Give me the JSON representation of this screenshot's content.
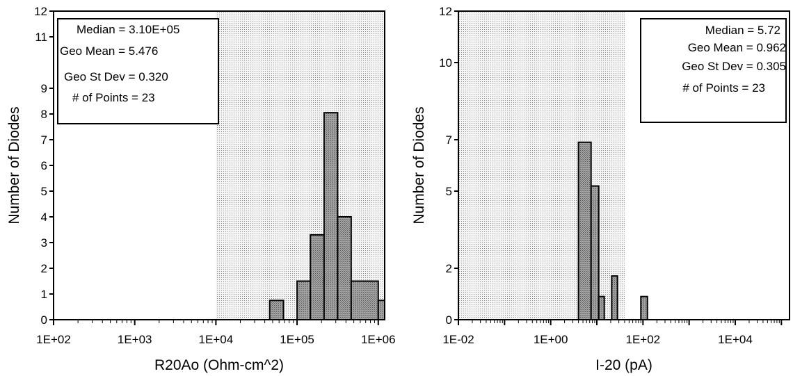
{
  "chart_data": [
    {
      "type": "bar",
      "xscale": "log",
      "xlabel": "R20Ao   (Ohm-cm^2)",
      "ylabel": "Number of Diodes",
      "xlim": [
        100,
        1200000
      ],
      "ylim": [
        0,
        12
      ],
      "x_ticks": [
        100,
        1000,
        10000,
        100000,
        1000000
      ],
      "x_tick_labels": [
        "1E+02",
        "1E+03",
        "1E+04",
        "1E+05",
        "1E+06"
      ],
      "y_ticks": [
        0,
        1,
        2,
        3,
        4,
        5,
        6,
        7,
        8,
        9,
        11,
        12
      ],
      "y_tick_labels": [
        "0",
        "1",
        "2",
        "3",
        "4",
        "5",
        "6",
        "7",
        "8",
        "9",
        "11",
        "12"
      ],
      "shaded_region": [
        10000,
        1200000
      ],
      "bars": [
        {
          "x0": 46000,
          "x1": 68000,
          "value": 0.75
        },
        {
          "x0": 100000,
          "x1": 146000,
          "value": 1.5
        },
        {
          "x0": 146000,
          "x1": 215000,
          "value": 3.3
        },
        {
          "x0": 215000,
          "x1": 316000,
          "value": 8.05
        },
        {
          "x0": 316000,
          "x1": 464000,
          "value": 4.0
        },
        {
          "x0": 464000,
          "x1": 1000000,
          "value": 1.5
        },
        {
          "x0": 1000000,
          "x1": 1200000,
          "value": 0.75
        }
      ],
      "stats": {
        "median": "Median = 3.10E+05",
        "geo_mean": "Geo Mean = 5.476",
        "geo_st_dev": "Geo St Dev = 0.320",
        "points": "# of Points = 23"
      }
    },
    {
      "type": "bar",
      "xscale": "log",
      "xlabel": "I-20    (pA)",
      "ylabel": "Number of Diodes",
      "xlim": [
        0.01,
        150000
      ],
      "ylim": [
        0,
        12
      ],
      "x_ticks": [
        0.01,
        1,
        100,
        10000
      ],
      "x_tick_labels": [
        "1E-02",
        "1E+00",
        "1E+02",
        "1E+04"
      ],
      "y_ticks": [
        0,
        2,
        5,
        7,
        10,
        12
      ],
      "y_tick_labels": [
        "0",
        "2",
        "5",
        "7",
        "10",
        "12"
      ],
      "shaded_region": [
        0.01,
        40
      ],
      "bars": [
        {
          "x0": 4,
          "x1": 7.5,
          "value": 6.9
        },
        {
          "x0": 7.5,
          "x1": 11,
          "value": 5.2
        },
        {
          "x0": 11,
          "x1": 14.5,
          "value": 0.9
        },
        {
          "x0": 21,
          "x1": 28,
          "value": 1.7
        },
        {
          "x0": 90,
          "x1": 125,
          "value": 0.9
        }
      ],
      "stats": {
        "median": "Median = 5.72",
        "geo_mean": "Geo Mean = 0.962",
        "geo_st_dev": "Geo St Dev = 0.305",
        "points": "# of Points = 23"
      }
    }
  ]
}
